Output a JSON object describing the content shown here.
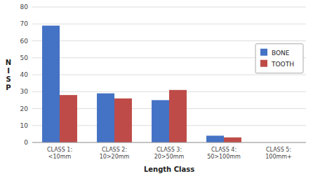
{
  "chart_data": {
    "type": "bar",
    "xlabel": "Length Class",
    "ylabel": "N\nI\nS\nP",
    "categories": [
      "CLASS 1:\n<10mm",
      "CLASS 2:\n10>20mm",
      "CLASS 3:\n20>50mm",
      "CLASS 4:\n50>100mm",
      "CLASS 5:\n100mm+"
    ],
    "series": [
      {
        "name": "BONE",
        "color": "#4472C4",
        "values": [
          69,
          29,
          25,
          4,
          0
        ]
      },
      {
        "name": "TOOTH",
        "color": "#BE4B48",
        "values": [
          28,
          26,
          31,
          3,
          0
        ]
      }
    ],
    "ylim": [
      0,
      80
    ],
    "yticks": [
      0,
      10,
      20,
      30,
      40,
      50,
      60,
      70,
      80
    ],
    "grid": true,
    "legend": "right"
  }
}
